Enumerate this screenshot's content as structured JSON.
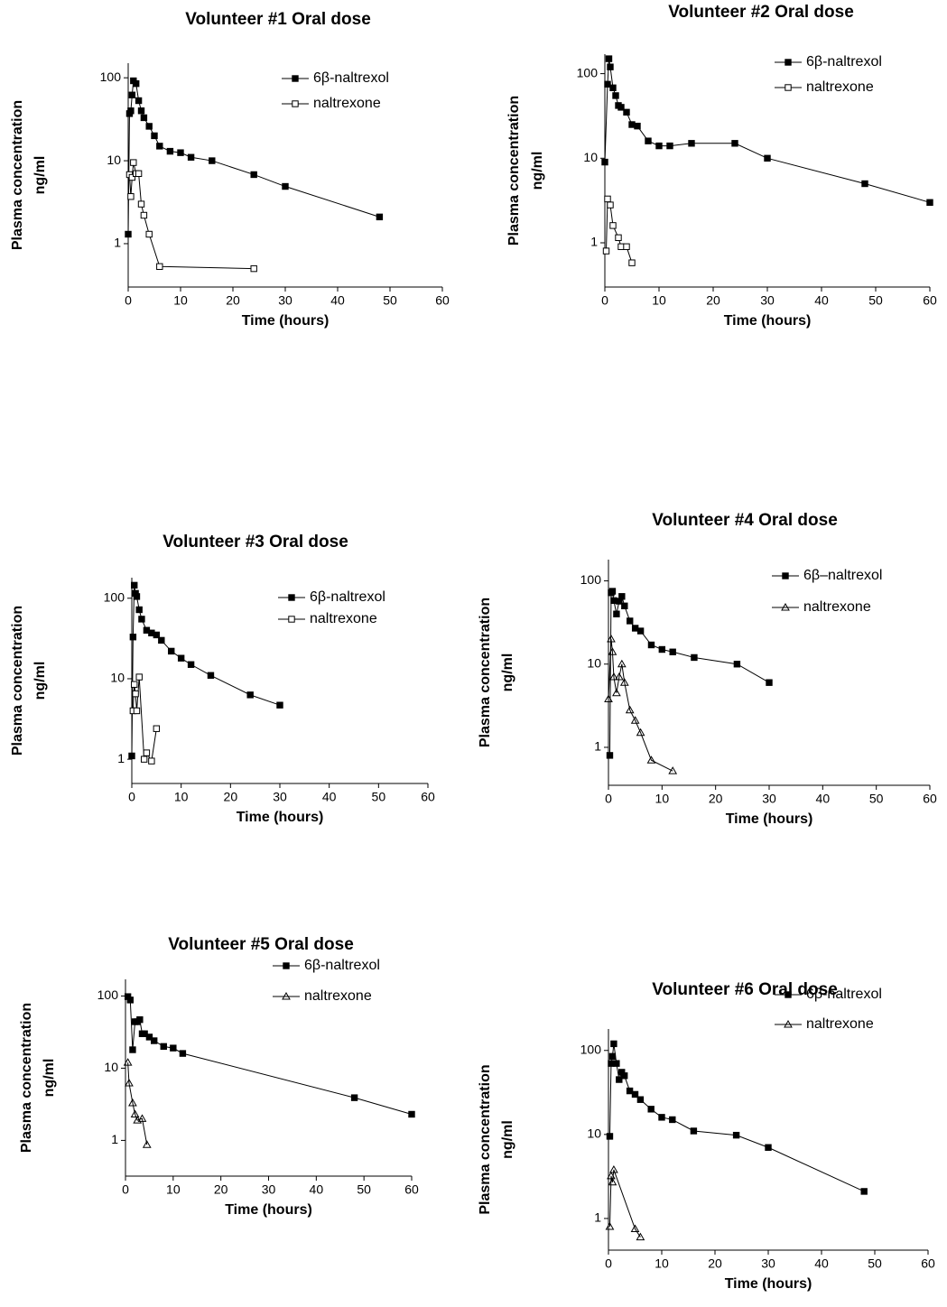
{
  "chart_data": [
    {
      "type": "line",
      "title": "Volunteer #1 Oral dose",
      "xlabel": "Time (hours)",
      "ylabel": [
        "Plasma concentration",
        "ng/ml"
      ],
      "log_y": true,
      "xlim": [
        0,
        60
      ],
      "xticks": [
        0,
        10,
        20,
        30,
        40,
        50,
        60
      ],
      "ylim": [
        0.3,
        150
      ],
      "yticks": [
        1,
        10,
        100
      ],
      "series": [
        {
          "name": "6β-naltrexol",
          "marker": "filled-square",
          "color": "#000000",
          "x": [
            0,
            0.25,
            0.5,
            0.75,
            1,
            1.5,
            2,
            2.5,
            3,
            4,
            5,
            6,
            8,
            10,
            12,
            16,
            24,
            30,
            48
          ],
          "values": [
            1.3,
            37,
            40,
            62,
            92,
            85,
            53,
            40,
            33,
            26,
            20,
            15,
            13,
            12.5,
            11,
            10,
            6.8,
            4.9,
            2.1
          ]
        },
        {
          "name": "naltrexone",
          "marker": "open-square",
          "color": "#000000",
          "x": [
            0.25,
            0.5,
            0.75,
            1,
            1.5,
            2,
            2.5,
            3,
            4,
            6,
            24
          ],
          "values": [
            6.8,
            3.7,
            6.3,
            9.5,
            7,
            7,
            3,
            2.2,
            1.3,
            0.53,
            0.5
          ]
        }
      ]
    },
    {
      "type": "line",
      "title": "Volunteer #2 Oral dose",
      "xlabel": "Time (hours)",
      "ylabel": [
        "Plasma concentration",
        "ng/ml"
      ],
      "log_y": true,
      "xlim": [
        0,
        60
      ],
      "xticks": [
        0,
        10,
        20,
        30,
        40,
        50,
        60
      ],
      "ylim": [
        0.3,
        170
      ],
      "yticks": [
        1,
        10,
        100
      ],
      "series": [
        {
          "name": "6β-naltrexol",
          "marker": "filled-square",
          "color": "#000000",
          "x": [
            0,
            0.5,
            0.75,
            1,
            1.5,
            2,
            2.5,
            3,
            4,
            5,
            6,
            8,
            10,
            12,
            16,
            24,
            30,
            48,
            60
          ],
          "values": [
            9,
            75,
            150,
            120,
            68,
            55,
            42,
            40,
            35,
            25,
            24,
            16,
            14,
            14,
            15,
            15,
            10,
            5,
            3
          ]
        },
        {
          "name": "naltrexone",
          "marker": "open-square",
          "color": "#000000",
          "x": [
            0.25,
            0.5,
            1,
            1.5,
            2.5,
            3,
            4,
            5
          ],
          "values": [
            0.8,
            3.3,
            2.8,
            1.6,
            1.15,
            0.9,
            0.9,
            0.58
          ]
        }
      ]
    },
    {
      "type": "line",
      "title": "Volunteer #3 Oral dose",
      "xlabel": "Time (hours)",
      "ylabel": [
        "Plasma concentration",
        "ng/ml"
      ],
      "log_y": true,
      "xlim": [
        0,
        60
      ],
      "xticks": [
        0,
        10,
        20,
        30,
        40,
        50,
        60
      ],
      "ylim": [
        0.5,
        180
      ],
      "yticks": [
        1,
        10,
        100
      ],
      "series": [
        {
          "name": "6β-naltrexol",
          "marker": "filled-square",
          "color": "#000000",
          "x": [
            0,
            0.25,
            0.5,
            0.75,
            1,
            1.5,
            2,
            3,
            4,
            5,
            6,
            8,
            10,
            12,
            16,
            24,
            30
          ],
          "values": [
            1.1,
            33,
            145,
            115,
            105,
            72,
            55,
            40,
            37,
            35,
            30,
            22,
            18,
            15,
            11,
            6.3,
            4.7
          ]
        },
        {
          "name": "naltrexone",
          "marker": "open-square",
          "color": "#000000",
          "x": [
            0.25,
            0.5,
            0.75,
            1,
            1.5,
            2.5,
            3,
            4,
            5
          ],
          "values": [
            4,
            8.5,
            6.5,
            4,
            10.5,
            1,
            1.2,
            0.95,
            2.4
          ]
        }
      ]
    },
    {
      "type": "line",
      "title": "Volunteer #4 Oral dose",
      "xlabel": "Time (hours)",
      "ylabel": [
        "Plasma concentration",
        "ng/ml"
      ],
      "log_y": true,
      "xlim": [
        0,
        60
      ],
      "xticks": [
        0,
        10,
        20,
        30,
        40,
        50,
        60
      ],
      "ylim": [
        0.35,
        180
      ],
      "yticks": [
        1,
        10,
        100
      ],
      "series": [
        {
          "name": "6β–naltrexol",
          "marker": "filled-square",
          "color": "#000000",
          "x": [
            0.25,
            0.5,
            0.75,
            1,
            1.5,
            2,
            2.5,
            3,
            4,
            5,
            6,
            8,
            10,
            12,
            16,
            24,
            30
          ],
          "values": [
            0.8,
            72,
            75,
            58,
            40,
            57,
            65,
            50,
            33,
            27,
            25,
            17,
            15,
            14,
            12,
            10,
            6
          ]
        },
        {
          "name": "naltrexone",
          "marker": "triangle",
          "color": "#000000",
          "x": [
            0,
            0.5,
            0.75,
            1,
            1.5,
            2,
            2.5,
            3,
            4,
            5,
            6,
            8,
            12
          ],
          "values": [
            3.8,
            20,
            14,
            7,
            4.5,
            7,
            10,
            6,
            2.8,
            2.1,
            1.5,
            0.7,
            0.52
          ]
        }
      ]
    },
    {
      "type": "line",
      "title": "Volunteer #5 Oral dose",
      "xlabel": "Time (hours)",
      "ylabel": [
        "Plasma concentration",
        "ng/ml"
      ],
      "log_y": true,
      "xlim": [
        0,
        60
      ],
      "xticks": [
        0,
        10,
        20,
        30,
        40,
        50,
        60
      ],
      "ylim": [
        0.32,
        170
      ],
      "yticks": [
        1,
        10,
        100
      ],
      "series": [
        {
          "name": "6β-naltrexol",
          "marker": "filled-square",
          "color": "#000000",
          "x": [
            0.5,
            1,
            1.5,
            2,
            2.5,
            3,
            3.5,
            4,
            5,
            6,
            8,
            10,
            12,
            48,
            60
          ],
          "values": [
            98,
            88,
            18,
            44,
            44,
            47,
            30,
            30,
            27,
            24,
            20,
            19,
            16,
            3.9,
            2.3
          ]
        },
        {
          "name": "naltrexone",
          "marker": "triangle",
          "color": "#000000",
          "x": [
            0.5,
            0.75,
            1.5,
            2,
            2.5,
            3.5,
            4.5
          ],
          "values": [
            12,
            6.2,
            3.3,
            2.3,
            1.9,
            2,
            0.87
          ]
        }
      ]
    },
    {
      "type": "line",
      "title": "Volunteer #6 Oral dose",
      "xlabel": "Time (hours)",
      "ylabel": [
        "Plasma concentration",
        "ng/ml"
      ],
      "log_y": true,
      "xlim": [
        0,
        60
      ],
      "xticks": [
        0,
        10,
        20,
        30,
        40,
        50,
        60
      ],
      "ylim": [
        0.42,
        180
      ],
      "yticks": [
        1,
        10,
        100
      ],
      "series": [
        {
          "name": "6β-naltrexol",
          "marker": "filled-square",
          "color": "#000000",
          "x": [
            0.25,
            0.5,
            0.75,
            1,
            1.5,
            2,
            2.5,
            3,
            4,
            5,
            6,
            8,
            10,
            12,
            16,
            24,
            30,
            48
          ],
          "values": [
            9.5,
            70,
            85,
            120,
            70,
            45,
            55,
            50,
            33,
            30,
            26,
            20,
            16,
            15,
            11,
            9.8,
            7,
            2.1
          ]
        },
        {
          "name": "naltrexone",
          "marker": "triangle",
          "color": "#000000",
          "x": [
            0.25,
            0.5,
            0.75,
            1,
            5,
            6
          ],
          "values": [
            0.8,
            3.2,
            2.7,
            3.8,
            0.75,
            0.6
          ]
        }
      ]
    }
  ]
}
